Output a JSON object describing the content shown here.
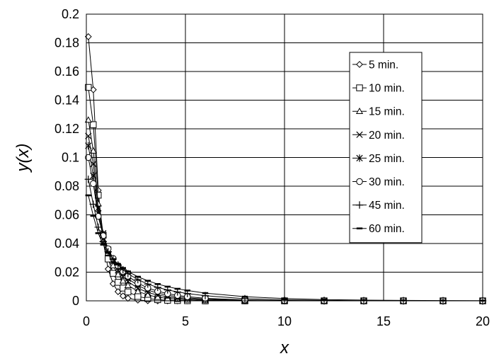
{
  "chart_data": {
    "type": "line",
    "title": "",
    "xlabel": "x",
    "ylabel": "y(x)",
    "xlim": [
      0,
      20
    ],
    "ylim": [
      0,
      0.2
    ],
    "xticks": [
      0,
      5,
      10,
      15,
      20
    ],
    "yticks": [
      0,
      0.02,
      0.04,
      0.06,
      0.08,
      0.1,
      0.12,
      0.14,
      0.16,
      0.18,
      0.2
    ],
    "xtick_labels": [
      "0",
      "5",
      "10",
      "15",
      "20"
    ],
    "ytick_labels": [
      "0",
      "0.02",
      "0.04",
      "0.06",
      "0.08",
      "0.1",
      "0.12",
      "0.14",
      "0.16",
      "0.18",
      "0.2"
    ],
    "grid": true,
    "legend_position": "right",
    "color": "#000000",
    "series": [
      {
        "name": "5 min.",
        "marker": "diamond",
        "x": [
          0.1,
          0.35,
          0.6,
          0.85,
          1.1,
          1.35,
          1.6,
          1.85,
          2.1,
          2.6,
          3.1,
          3.6,
          4.1,
          4.6,
          5.1,
          6,
          8,
          10,
          12,
          14,
          16,
          18,
          20
        ],
        "y": [
          0.1843,
          0.1473,
          0.0771,
          0.0414,
          0.0222,
          0.0119,
          0.0064,
          0.0034,
          0.0018,
          0.0005,
          0.0001,
          0,
          0,
          0,
          0,
          0,
          0,
          0,
          0,
          0,
          0,
          0,
          0
        ]
      },
      {
        "name": "10 min.",
        "marker": "square",
        "x": [
          0.1,
          0.35,
          0.6,
          0.85,
          1.1,
          1.35,
          1.6,
          1.85,
          2.1,
          2.6,
          3.1,
          3.6,
          4.1,
          4.6,
          5.1,
          6,
          8,
          10,
          12,
          14,
          16,
          18,
          20
        ],
        "y": [
          0.1489,
          0.1229,
          0.0737,
          0.0458,
          0.0292,
          0.0192,
          0.0129,
          0.0089,
          0.0062,
          0.0031,
          0.0016,
          0.0008,
          0.0004,
          0.0002,
          0.0001,
          0,
          0,
          0,
          0,
          0,
          0,
          0,
          0
        ]
      },
      {
        "name": "15 min.",
        "marker": "triangle",
        "x": [
          0.1,
          0.35,
          0.6,
          0.85,
          1.1,
          1.35,
          1.6,
          1.85,
          2.1,
          2.6,
          3.1,
          3.6,
          4.1,
          4.6,
          5.1,
          6,
          8,
          10,
          12,
          14,
          16,
          18,
          20
        ],
        "y": [
          0.1262,
          0.1047,
          0.0678,
          0.0467,
          0.0335,
          0.0246,
          0.0184,
          0.014,
          0.0108,
          0.0066,
          0.0041,
          0.0026,
          0.0017,
          0.0011,
          0.0007,
          0.0003,
          0,
          0,
          0,
          0,
          0,
          0,
          0
        ]
      },
      {
        "name": "20 min.",
        "marker": "x",
        "x": [
          0.1,
          0.35,
          0.6,
          0.85,
          1.1,
          1.35,
          1.6,
          1.85,
          2.1,
          2.6,
          3.1,
          3.6,
          4.1,
          4.6,
          5.1,
          6,
          8,
          10,
          12,
          14,
          16,
          18,
          20
        ],
        "y": [
          0.115,
          0.0955,
          0.0647,
          0.0471,
          0.0355,
          0.0274,
          0.0214,
          0.0169,
          0.0135,
          0.0088,
          0.0059,
          0.004,
          0.0028,
          0.0019,
          0.0014,
          0.0007,
          0.0002,
          0,
          0,
          0,
          0,
          0,
          0
        ]
      },
      {
        "name": "25 min.",
        "marker": "star",
        "x": [
          0.1,
          0.35,
          0.6,
          0.85,
          1.1,
          1.35,
          1.6,
          1.85,
          2.1,
          2.6,
          3.1,
          3.6,
          4.1,
          4.6,
          5.1,
          6,
          8,
          10,
          12,
          14,
          16,
          18,
          20
        ],
        "y": [
          0.1082,
          0.0873,
          0.0609,
          0.0458,
          0.0357,
          0.0285,
          0.023,
          0.0188,
          0.0155,
          0.0107,
          0.0075,
          0.0054,
          0.0039,
          0.0028,
          0.0021,
          0.0012,
          0.0003,
          0.0001,
          0,
          0,
          0,
          0,
          0
        ]
      },
      {
        "name": "30 min.",
        "marker": "circle",
        "x": [
          0.1,
          0.35,
          0.6,
          0.85,
          1.1,
          1.35,
          1.6,
          1.85,
          2.1,
          2.6,
          3.1,
          3.6,
          4.1,
          4.6,
          5.1,
          6,
          8,
          10,
          12,
          14,
          16,
          18,
          20
        ],
        "y": [
          0.1,
          0.0818,
          0.0589,
          0.0454,
          0.0363,
          0.0296,
          0.0245,
          0.0204,
          0.0172,
          0.0124,
          0.009,
          0.0067,
          0.005,
          0.0038,
          0.0029,
          0.0018,
          0.0006,
          0.0002,
          0.0001,
          0,
          0,
          0,
          0
        ]
      },
      {
        "name": "45 min.",
        "marker": "plus",
        "x": [
          0.1,
          0.35,
          0.6,
          0.85,
          1.1,
          1.35,
          1.6,
          1.85,
          2.1,
          2.6,
          3.1,
          3.6,
          4.1,
          4.6,
          5.1,
          6,
          8,
          10,
          12,
          14,
          16,
          18,
          20
        ],
        "y": [
          0.0848,
          0.0674,
          0.0514,
          0.0413,
          0.0343,
          0.0291,
          0.025,
          0.0217,
          0.019,
          0.0148,
          0.0117,
          0.0094,
          0.0076,
          0.0062,
          0.0051,
          0.0036,
          0.0015,
          0.0007,
          0.0003,
          0.0001,
          0.0001,
          0,
          0
        ]
      },
      {
        "name": "60 min.",
        "marker": "dash",
        "x": [
          0.1,
          0.35,
          0.6,
          0.85,
          1.1,
          1.35,
          1.6,
          1.85,
          2.1,
          2.6,
          3.1,
          3.6,
          4.1,
          4.6,
          5.1,
          6,
          8,
          10,
          12,
          14,
          16,
          18,
          20
        ],
        "y": [
          0.0736,
          0.0593,
          0.0472,
          0.0392,
          0.0335,
          0.0291,
          0.0257,
          0.0229,
          0.0205,
          0.0168,
          0.014,
          0.0117,
          0.0099,
          0.0084,
          0.0072,
          0.0054,
          0.0029,
          0.0016,
          0.0009,
          0.0005,
          0.0003,
          0.0002,
          0.0001
        ]
      }
    ]
  }
}
